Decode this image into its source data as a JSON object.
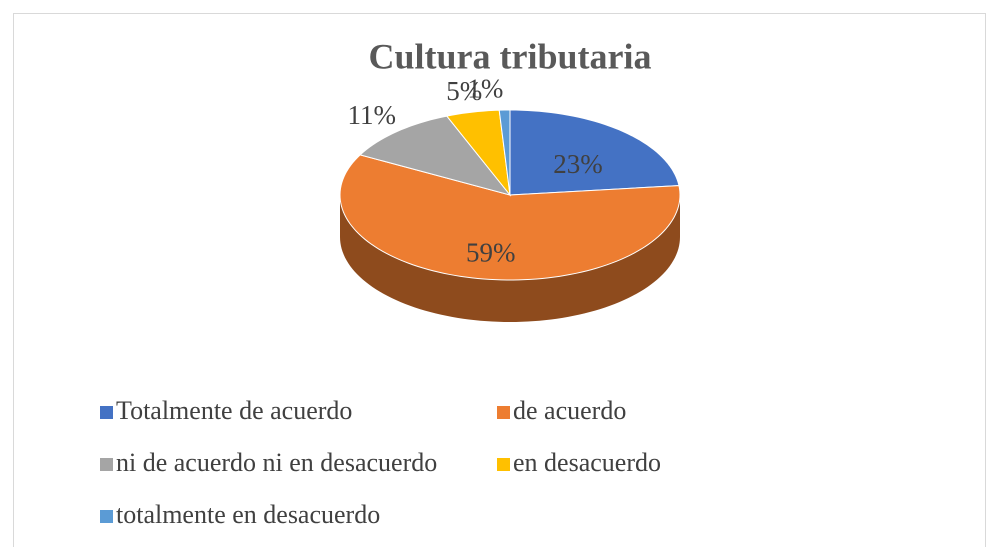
{
  "chart_data": {
    "type": "pie",
    "title": "Cultura tributaria",
    "categories": [
      "Totalmente de acuerdo",
      "de acuerdo",
      "ni de acuerdo ni en desacuerdo",
      "en desacuerdo",
      "totalmente en desacuerdo"
    ],
    "values": [
      23,
      59,
      11,
      5,
      1
    ],
    "value_labels": [
      "23%",
      "59%",
      "11%",
      "5%",
      "1%"
    ],
    "colors": [
      "#4472c4",
      "#ed7d31",
      "#a5a5a5",
      "#ffc000",
      "#5b9bd5"
    ],
    "legend": "bottom",
    "style": "3d"
  }
}
